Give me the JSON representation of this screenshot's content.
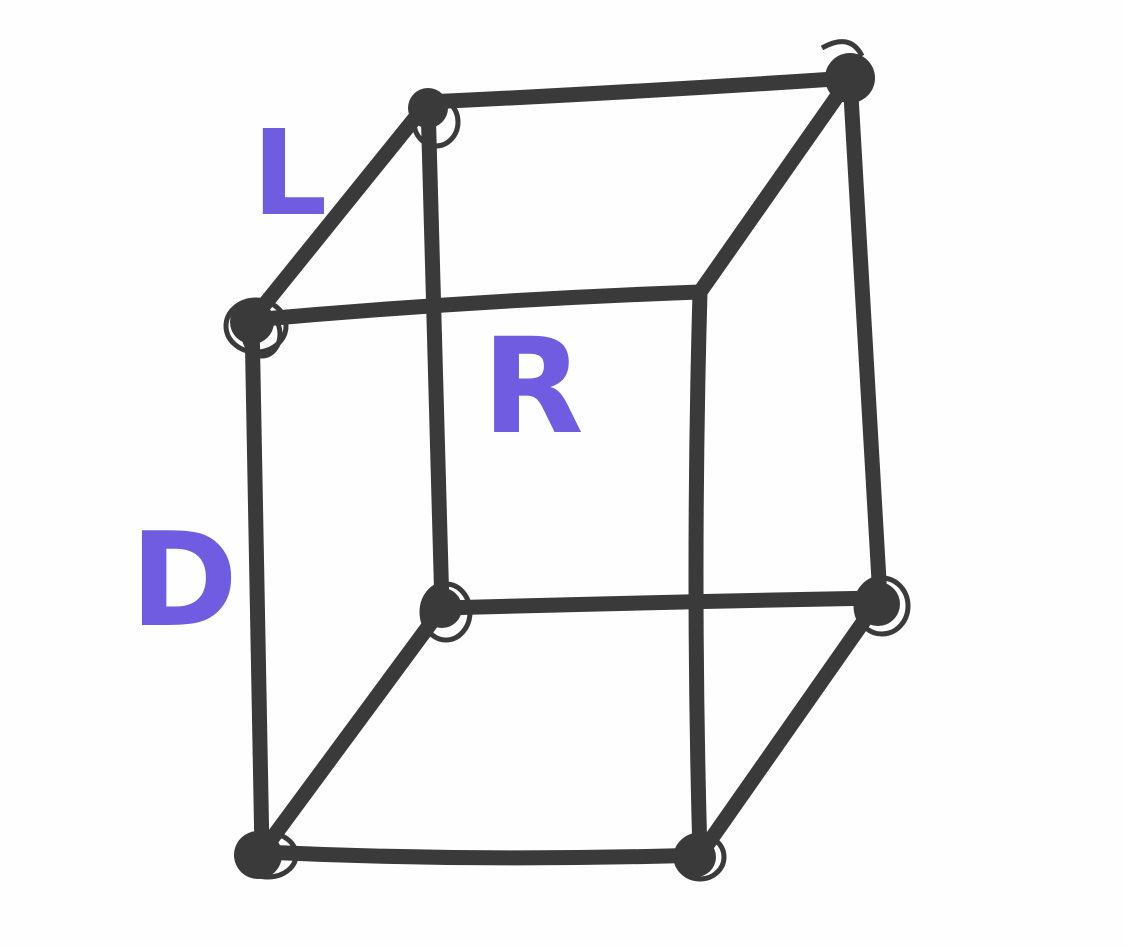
{
  "colors": {
    "ink": "#3a3a3a",
    "label": "#6f5ce0",
    "paper": "#fefefe"
  },
  "labels": {
    "length": "L",
    "rise": "R",
    "depth": "D"
  }
}
